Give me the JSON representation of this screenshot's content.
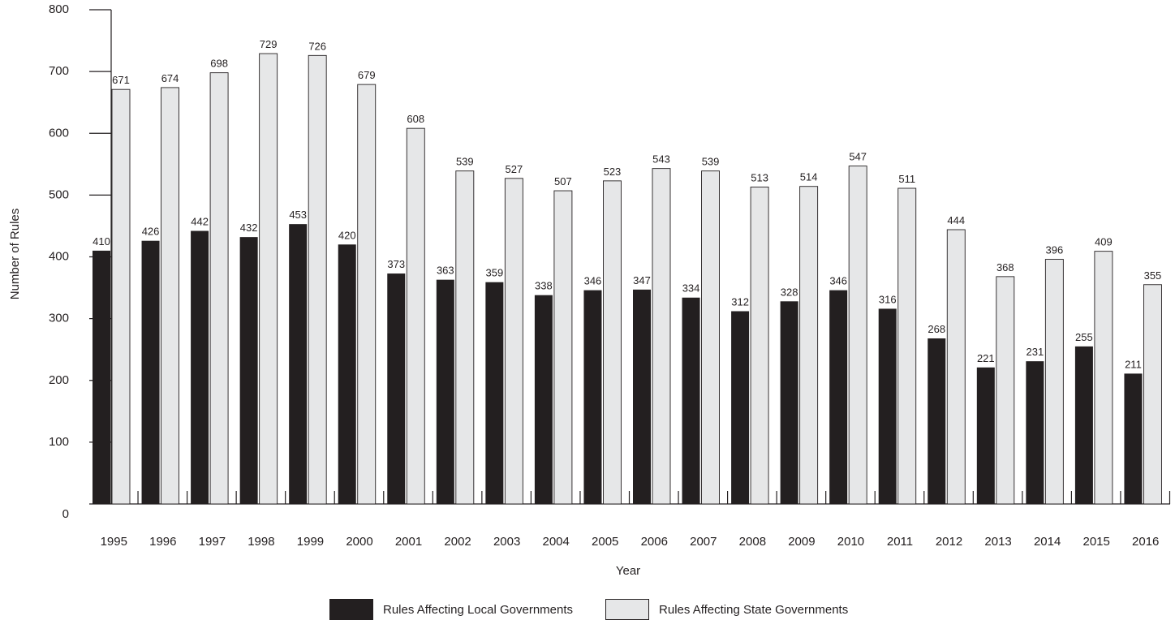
{
  "chart_data": {
    "type": "bar",
    "title": "",
    "xlabel": "Year",
    "ylabel": "Number of Rules",
    "ylim": [
      0,
      800
    ],
    "yticks": [
      0,
      100,
      200,
      300,
      400,
      500,
      600,
      700,
      800
    ],
    "grid": false,
    "legend_position": "bottom",
    "categories": [
      "1995",
      "1996",
      "1997",
      "1998",
      "1999",
      "2000",
      "2001",
      "2002",
      "2003",
      "2004",
      "2005",
      "2006",
      "2007",
      "2008",
      "2009",
      "2010",
      "2011",
      "2012",
      "2013",
      "2014",
      "2015",
      "2016"
    ],
    "series": [
      {
        "name": "Rules Affecting Local Governments",
        "color": "#231f20",
        "values": [
          410,
          426,
          442,
          432,
          453,
          420,
          373,
          363,
          359,
          338,
          346,
          347,
          334,
          312,
          328,
          346,
          316,
          268,
          221,
          231,
          255,
          211
        ]
      },
      {
        "name": "Rules Affecting State Governments",
        "color": "#e6e7e8",
        "values": [
          671,
          674,
          698,
          729,
          726,
          679,
          608,
          539,
          527,
          507,
          523,
          543,
          539,
          513,
          514,
          547,
          511,
          444,
          368,
          396,
          409,
          355
        ]
      }
    ]
  }
}
